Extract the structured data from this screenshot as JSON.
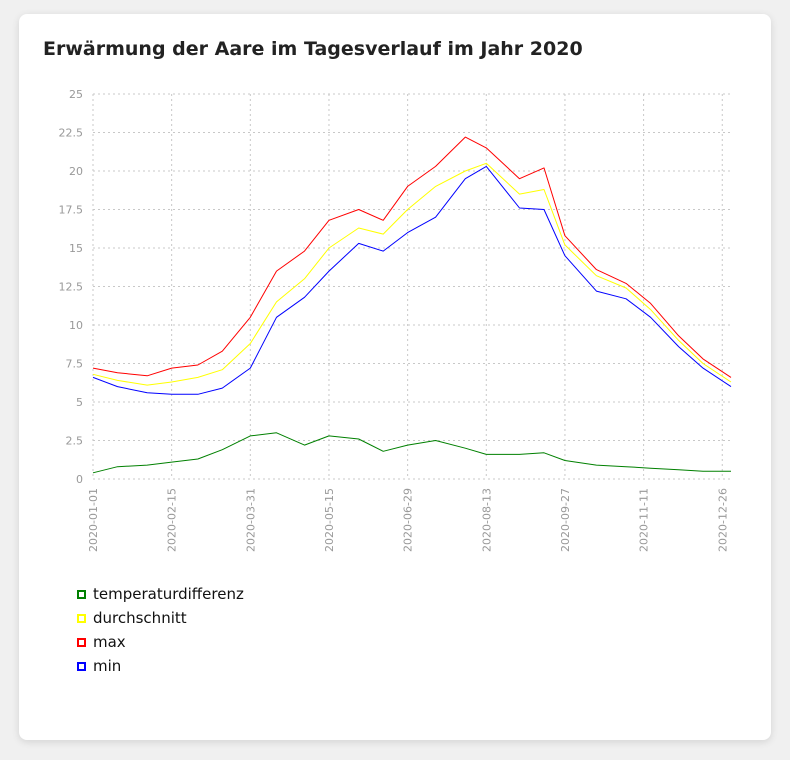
{
  "page": {
    "title": "Erwärmung der Aare im Tagesverlauf im Jahr 2020"
  },
  "chart_data": {
    "type": "line",
    "title": "Erwärmung der Aare im Tagesverlauf im Jahr 2020",
    "xlabel": "",
    "ylabel": "",
    "x_type": "date",
    "xlim": [
      "2020-01-01",
      "2020-12-31"
    ],
    "ylim": [
      0,
      25
    ],
    "y_ticks": [
      0,
      2.5,
      5,
      7.5,
      10,
      12.5,
      15,
      17.5,
      20,
      22.5,
      25
    ],
    "y_tick_labels": [
      "0",
      "2.5",
      "5",
      "7.5",
      "10",
      "12.5",
      "15",
      "17.5",
      "20",
      "22.5",
      "25"
    ],
    "x_ticks": [
      "2020-01-01",
      "2020-02-15",
      "2020-03-31",
      "2020-05-15",
      "2020-06-29",
      "2020-08-13",
      "2020-09-27",
      "2020-11-11",
      "2020-12-26"
    ],
    "grid": true,
    "legend": "bottom-left",
    "series": [
      {
        "name": "temperaturdifferenz",
        "color": "#008000",
        "x": [
          "2020-01-01",
          "2020-01-15",
          "2020-02-01",
          "2020-02-15",
          "2020-03-01",
          "2020-03-15",
          "2020-03-31",
          "2020-04-15",
          "2020-05-01",
          "2020-05-15",
          "2020-06-01",
          "2020-06-15",
          "2020-06-29",
          "2020-07-15",
          "2020-08-01",
          "2020-08-13",
          "2020-09-01",
          "2020-09-15",
          "2020-09-27",
          "2020-10-15",
          "2020-11-01",
          "2020-11-15",
          "2020-12-01",
          "2020-12-15",
          "2020-12-31"
        ],
        "y": [
          0.4,
          0.8,
          0.9,
          1.1,
          1.3,
          1.9,
          2.8,
          3.0,
          2.2,
          2.8,
          2.6,
          1.8,
          2.2,
          2.5,
          2.0,
          1.6,
          1.6,
          1.7,
          1.2,
          0.9,
          0.8,
          0.7,
          0.6,
          0.5,
          0.5
        ]
      },
      {
        "name": "durchschnitt",
        "color": "#ffff00",
        "x": [
          "2020-01-01",
          "2020-01-15",
          "2020-02-01",
          "2020-02-15",
          "2020-03-01",
          "2020-03-15",
          "2020-03-31",
          "2020-04-15",
          "2020-05-01",
          "2020-05-15",
          "2020-06-01",
          "2020-06-15",
          "2020-06-29",
          "2020-07-15",
          "2020-08-01",
          "2020-08-13",
          "2020-09-01",
          "2020-09-15",
          "2020-09-27",
          "2020-10-15",
          "2020-11-01",
          "2020-11-15",
          "2020-12-01",
          "2020-12-15",
          "2020-12-31"
        ],
        "y": [
          6.8,
          6.4,
          6.1,
          6.3,
          6.6,
          7.1,
          8.8,
          11.5,
          13.0,
          15.0,
          16.3,
          15.9,
          17.5,
          19.0,
          20.0,
          20.5,
          18.5,
          18.8,
          15.2,
          13.2,
          12.4,
          11.0,
          9.0,
          7.5,
          6.3
        ]
      },
      {
        "name": "max",
        "color": "#ff0000",
        "x": [
          "2020-01-01",
          "2020-01-15",
          "2020-02-01",
          "2020-02-15",
          "2020-03-01",
          "2020-03-15",
          "2020-03-31",
          "2020-04-15",
          "2020-05-01",
          "2020-05-15",
          "2020-06-01",
          "2020-06-15",
          "2020-06-29",
          "2020-07-15",
          "2020-08-01",
          "2020-08-13",
          "2020-09-01",
          "2020-09-15",
          "2020-09-27",
          "2020-10-15",
          "2020-11-01",
          "2020-11-15",
          "2020-12-01",
          "2020-12-15",
          "2020-12-31"
        ],
        "y": [
          7.2,
          6.9,
          6.7,
          7.2,
          7.4,
          8.3,
          10.5,
          13.5,
          14.8,
          16.8,
          17.5,
          16.8,
          19.0,
          20.3,
          22.2,
          21.5,
          19.5,
          20.2,
          15.8,
          13.6,
          12.7,
          11.4,
          9.3,
          7.8,
          6.6
        ]
      },
      {
        "name": "min",
        "color": "#0000ff",
        "x": [
          "2020-01-01",
          "2020-01-15",
          "2020-02-01",
          "2020-02-15",
          "2020-03-01",
          "2020-03-15",
          "2020-03-31",
          "2020-04-15",
          "2020-05-01",
          "2020-05-15",
          "2020-06-01",
          "2020-06-15",
          "2020-06-29",
          "2020-07-15",
          "2020-08-01",
          "2020-08-13",
          "2020-09-01",
          "2020-09-15",
          "2020-09-27",
          "2020-10-15",
          "2020-11-01",
          "2020-11-15",
          "2020-12-01",
          "2020-12-15",
          "2020-12-31"
        ],
        "y": [
          6.6,
          6.0,
          5.6,
          5.5,
          5.5,
          5.9,
          7.2,
          10.5,
          11.8,
          13.5,
          15.3,
          14.8,
          16.0,
          17.0,
          19.5,
          20.3,
          17.6,
          17.5,
          14.5,
          12.2,
          11.7,
          10.5,
          8.6,
          7.2,
          6.0
        ]
      }
    ]
  }
}
